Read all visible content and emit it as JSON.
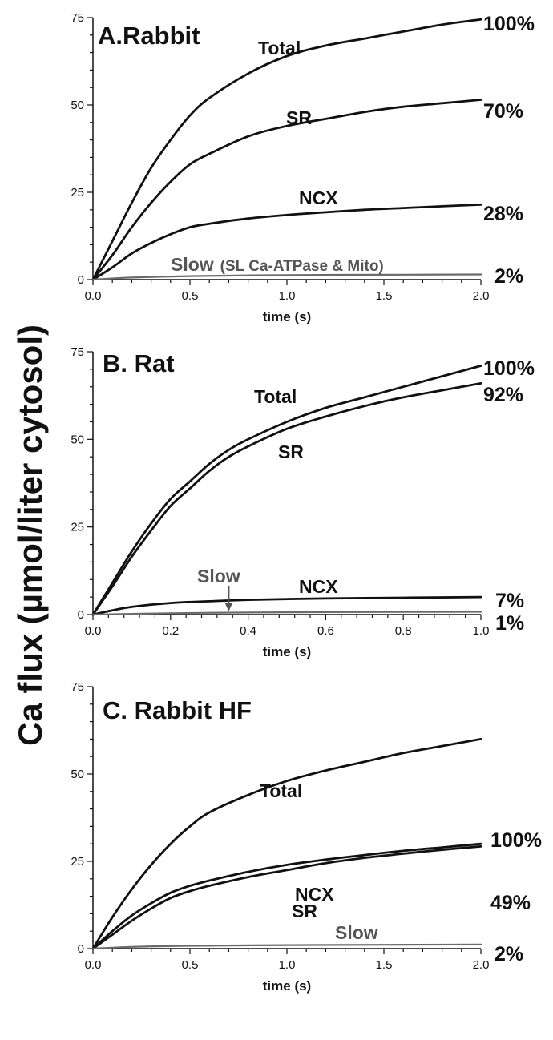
{
  "y_axis_title": "Ca flux (µmol/liter cytosol)",
  "colors": {
    "curve": "#111111",
    "slow_curve": "#6b6b6b",
    "axis": "#111111"
  },
  "chart_data": [
    {
      "type": "line",
      "title": "A.Rabbit",
      "xlabel": "time (s)",
      "xlim": [
        0,
        2
      ],
      "ylim": [
        0,
        75
      ],
      "x_ticks": [
        "0.0",
        "0.5",
        "1.0",
        "1.5",
        "2.0"
      ],
      "y_ticks": [
        "0",
        "25",
        "50",
        "75"
      ],
      "grid": false,
      "series": [
        {
          "name": "Total",
          "end_label": "100%",
          "color": "#111111",
          "x": [
            0,
            0.1,
            0.2,
            0.3,
            0.4,
            0.5,
            0.6,
            0.8,
            1.0,
            1.2,
            1.4,
            1.6,
            1.8,
            2.0
          ],
          "y": [
            0,
            11,
            22,
            32,
            40,
            47,
            52,
            59,
            64,
            67,
            69,
            71,
            73,
            74.5
          ]
        },
        {
          "name": "SR",
          "end_label": "70%",
          "color": "#111111",
          "x": [
            0,
            0.1,
            0.2,
            0.3,
            0.4,
            0.5,
            0.6,
            0.8,
            1.0,
            1.2,
            1.4,
            1.6,
            1.8,
            2.0
          ],
          "y": [
            0,
            7,
            15,
            22,
            28,
            33,
            36,
            41,
            44,
            46,
            48,
            49.5,
            50.5,
            51.5
          ]
        },
        {
          "name": "NCX",
          "end_label": "28%",
          "color": "#111111",
          "x": [
            0,
            0.1,
            0.2,
            0.3,
            0.4,
            0.5,
            0.6,
            0.8,
            1.0,
            1.2,
            1.4,
            1.6,
            1.8,
            2.0
          ],
          "y": [
            0,
            3.5,
            7.5,
            10.5,
            13,
            15,
            16,
            17.5,
            18.5,
            19.3,
            20,
            20.5,
            21,
            21.5
          ]
        },
        {
          "name": "Slow",
          "name_extra": "(SL Ca-ATPase & Mito)",
          "end_label": "2%",
          "color": "#6b6b6b",
          "x": [
            0,
            0.2,
            0.5,
            1.0,
            1.5,
            2.0
          ],
          "y": [
            0,
            0.6,
            1.0,
            1.3,
            1.4,
            1.5
          ]
        }
      ]
    },
    {
      "type": "line",
      "title": "B. Rat",
      "xlabel": "time (s)",
      "xlim": [
        0,
        1
      ],
      "ylim": [
        0,
        75
      ],
      "x_ticks": [
        "0.0",
        "0.2",
        "0.4",
        "0.6",
        "0.8",
        "1.0"
      ],
      "y_ticks": [
        "0",
        "25",
        "50",
        "75"
      ],
      "grid": false,
      "series": [
        {
          "name": "Total",
          "end_label": "100%",
          "color": "#111111",
          "x": [
            0,
            0.05,
            0.1,
            0.15,
            0.2,
            0.25,
            0.3,
            0.35,
            0.4,
            0.5,
            0.6,
            0.7,
            0.8,
            0.9,
            1.0
          ],
          "y": [
            0,
            9,
            18,
            26,
            33,
            38,
            43,
            47,
            50,
            55,
            59,
            62,
            65,
            68,
            71
          ]
        },
        {
          "name": "SR",
          "end_label": "92%",
          "color": "#111111",
          "x": [
            0,
            0.05,
            0.1,
            0.15,
            0.2,
            0.25,
            0.3,
            0.35,
            0.4,
            0.5,
            0.6,
            0.7,
            0.8,
            0.9,
            1.0
          ],
          "y": [
            0,
            8,
            16.5,
            24,
            31,
            36,
            41,
            45,
            48,
            53,
            56.5,
            59.5,
            62,
            64,
            66
          ]
        },
        {
          "name": "NCX",
          "end_label": "7%",
          "color": "#111111",
          "x": [
            0,
            0.05,
            0.1,
            0.2,
            0.3,
            0.4,
            0.6,
            0.8,
            1.0
          ],
          "y": [
            0,
            1.2,
            2.2,
            3.3,
            3.8,
            4.2,
            4.6,
            4.8,
            5
          ]
        },
        {
          "name": "Slow",
          "end_label": "1%",
          "color": "#6b6b6b",
          "x": [
            0,
            0.2,
            0.4,
            0.6,
            0.8,
            1.0
          ],
          "y": [
            0,
            0.4,
            0.6,
            0.7,
            0.75,
            0.8
          ]
        }
      ]
    },
    {
      "type": "line",
      "title": "C. Rabbit HF",
      "xlabel": "time (s)",
      "xlim": [
        0,
        2
      ],
      "ylim": [
        0,
        75
      ],
      "x_ticks": [
        "0.0",
        "0.5",
        "1.0",
        "1.5",
        "2.0"
      ],
      "y_ticks": [
        "0",
        "25",
        "50",
        "75"
      ],
      "grid": false,
      "series": [
        {
          "name": "Total",
          "end_label": "100%",
          "color": "#111111",
          "x": [
            0,
            0.1,
            0.2,
            0.3,
            0.4,
            0.5,
            0.6,
            0.8,
            1.0,
            1.2,
            1.4,
            1.6,
            1.8,
            2.0
          ],
          "y": [
            0,
            9,
            17,
            24,
            30,
            35,
            39,
            44,
            48,
            51,
            53.5,
            56,
            58,
            60
          ]
        },
        {
          "name": "NCX",
          "end_label": "49%",
          "color": "#111111",
          "x": [
            0,
            0.1,
            0.2,
            0.3,
            0.4,
            0.5,
            0.6,
            0.8,
            1.0,
            1.2,
            1.4,
            1.6,
            1.8,
            2.0
          ],
          "y": [
            0,
            5,
            9.5,
            13,
            16,
            18,
            19.5,
            22,
            24,
            25.5,
            26.8,
            28,
            29,
            30
          ]
        },
        {
          "name": "SR",
          "color": "#111111",
          "x": [
            0,
            0.1,
            0.2,
            0.3,
            0.4,
            0.5,
            0.6,
            0.8,
            1.0,
            1.2,
            1.4,
            1.6,
            1.8,
            2.0
          ],
          "y": [
            0,
            4,
            8,
            11.5,
            14.5,
            16.5,
            18,
            20.5,
            22.5,
            24.5,
            26,
            27.2,
            28.3,
            29.3
          ]
        },
        {
          "name": "Slow",
          "end_label": "2%",
          "color": "#6b6b6b",
          "x": [
            0,
            0.2,
            0.5,
            1.0,
            1.5,
            2.0
          ],
          "y": [
            0,
            0.5,
            0.8,
            1.0,
            1.1,
            1.2
          ]
        }
      ]
    }
  ]
}
